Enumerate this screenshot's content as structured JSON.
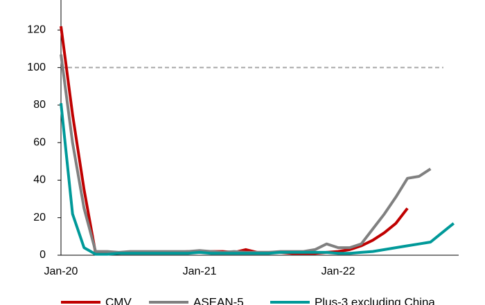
{
  "chart_data": {
    "type": "line",
    "categories": [
      "Jan-20",
      null,
      null,
      null,
      null,
      null,
      null,
      null,
      null,
      null,
      null,
      null,
      "Jan-21",
      null,
      null,
      null,
      null,
      null,
      null,
      null,
      null,
      null,
      null,
      null,
      "Jan-22",
      null,
      null,
      null,
      null,
      null,
      null,
      null,
      null,
      null,
      null
    ],
    "series": [
      {
        "name": "CMV",
        "color": "#c00000",
        "values": [
          122,
          75,
          35,
          1,
          1,
          1,
          1.5,
          1.5,
          1.5,
          1.5,
          1.5,
          2,
          2,
          2,
          2,
          1.5,
          3,
          1.5,
          1.5,
          1.5,
          1,
          1,
          1,
          1.5,
          2,
          3,
          5,
          8,
          12,
          17,
          25,
          null,
          null,
          null,
          null
        ]
      },
      {
        "name": "ASEAN-5",
        "color": "#808080",
        "values": [
          107,
          60,
          25,
          2,
          2,
          1.5,
          2,
          2,
          2,
          2,
          2,
          2,
          2.5,
          2,
          1.5,
          2,
          1.5,
          1.5,
          1.5,
          2,
          2,
          2,
          3,
          6,
          4,
          4,
          6,
          14,
          22,
          31,
          41,
          42,
          46,
          null,
          null
        ]
      },
      {
        "name": "Plus-3 excluding China",
        "color": "#009999",
        "values": [
          81,
          22,
          4,
          0.5,
          0.5,
          1,
          1,
          1,
          1,
          1,
          1,
          1,
          1.5,
          1,
          1,
          1,
          1,
          1,
          1,
          1.5,
          1.5,
          1.5,
          1.5,
          1.5,
          1,
          1,
          1.5,
          2,
          3,
          4,
          5,
          6,
          7,
          12,
          17
        ]
      }
    ],
    "reference_line": 100,
    "ylim": [
      0,
      136
    ],
    "yticks": [
      0,
      20,
      40,
      60,
      80,
      100,
      120
    ]
  }
}
